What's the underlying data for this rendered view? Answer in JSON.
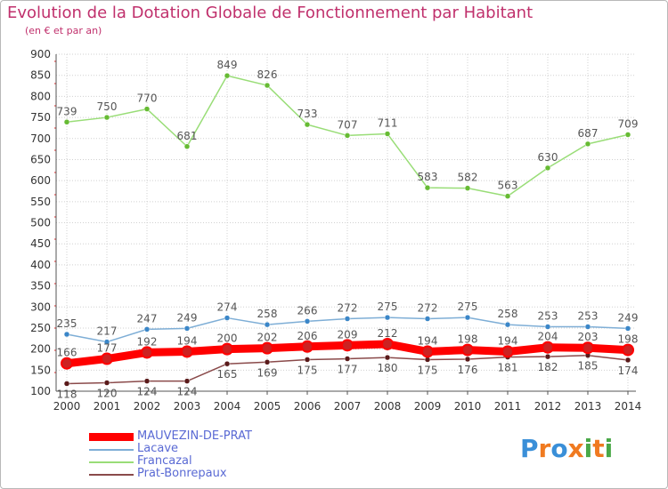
{
  "title": "Evolution de la Dotation Globale de Fonctionnement par Habitant",
  "subtitle": "(en € et par an)",
  "logo": {
    "text": "Proxiti",
    "letters": [
      {
        "ch": "P",
        "color": "#3a8fd8"
      },
      {
        "ch": "r",
        "color": "#f07a20"
      },
      {
        "ch": "o",
        "color": "#3a8fd8"
      },
      {
        "ch": "x",
        "color": "#f07a20"
      },
      {
        "ch": "i",
        "color": "#4aa848"
      },
      {
        "ch": "t",
        "color": "#f07a20"
      },
      {
        "ch": "i",
        "color": "#4aa848"
      }
    ]
  },
  "colors": {
    "axis": "#555555",
    "grid": "#d0d0d0",
    "tick_text": "#333333",
    "label_text": "#555555",
    "axis_red_ticks": "#e02020"
  },
  "chart_data": {
    "type": "line",
    "x": [
      "2000",
      "2001",
      "2002",
      "2003",
      "2004",
      "2005",
      "2006",
      "2007",
      "2008",
      "2009",
      "2010",
      "2011",
      "2012",
      "2013",
      "2014"
    ],
    "ylim": [
      100,
      900
    ],
    "yticks": [
      100,
      150,
      200,
      250,
      300,
      350,
      400,
      450,
      500,
      550,
      600,
      650,
      700,
      750,
      800,
      850,
      900
    ],
    "grid": true,
    "legend_position": "bottom-left",
    "series": [
      {
        "name": "MAUVEZIN-DE-PRAT",
        "color": "#ff0000",
        "marker_color": "#cc2222",
        "weight": "thick",
        "values": [
          166,
          177,
          192,
          194,
          200,
          202,
          206,
          209,
          212,
          194,
          198,
          194,
          204,
          203,
          198
        ]
      },
      {
        "name": "Lacave",
        "color": "#7eaed6",
        "marker_color": "#3a86c8",
        "weight": "thin",
        "values": [
          235,
          217,
          247,
          249,
          274,
          258,
          266,
          272,
          275,
          272,
          275,
          258,
          253,
          253,
          249
        ]
      },
      {
        "name": "Francazal",
        "color": "#99dd77",
        "marker_color": "#66bb33",
        "weight": "thin",
        "values": [
          739,
          750,
          770,
          681,
          849,
          826,
          733,
          707,
          711,
          583,
          582,
          563,
          630,
          687,
          709
        ]
      },
      {
        "name": "Prat-Bonrepaux",
        "color": "#8a4a4a",
        "marker_color": "#5a1a1a",
        "weight": "thin",
        "values": [
          118,
          120,
          124,
          124,
          165,
          169,
          175,
          177,
          180,
          175,
          176,
          181,
          182,
          185,
          174
        ]
      }
    ]
  }
}
